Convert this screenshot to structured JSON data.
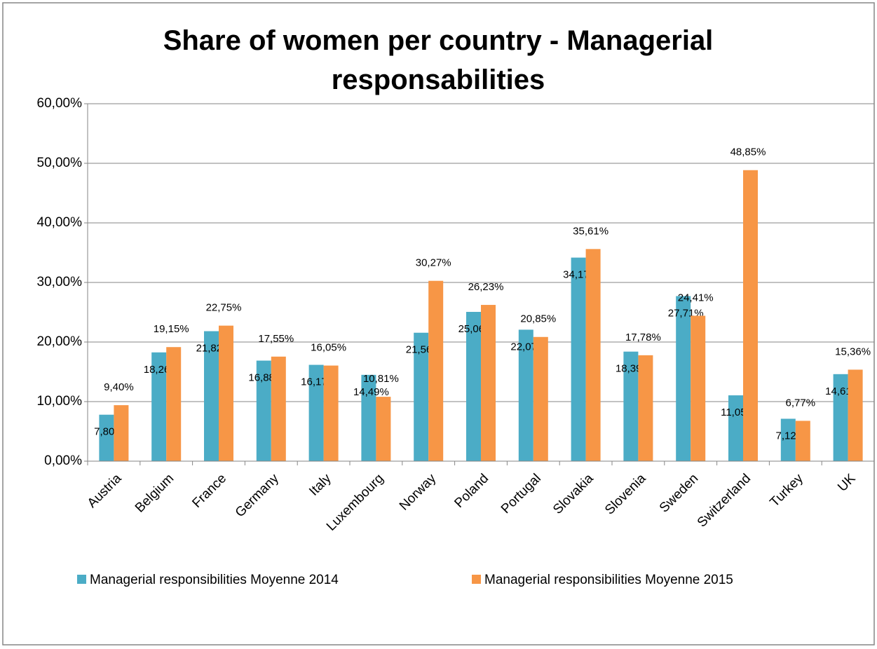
{
  "chart_data": {
    "type": "bar",
    "title": "Share of women per country - Managerial responsabilities",
    "categories": [
      "Austria",
      "Belgium",
      "France",
      "Germany",
      "Italy",
      "Luxembourg",
      "Norway",
      "Poland",
      "Portugal",
      "Slovakia",
      "Slovenia",
      "Sweden",
      "Switzerland",
      "Turkey",
      "UK"
    ],
    "series": [
      {
        "name": "Managerial responsibilities Moyenne 2014",
        "color": "#4bacc6",
        "values": [
          7.8,
          18.26,
          21.82,
          16.88,
          16.17,
          14.49,
          21.56,
          25.06,
          22.07,
          34.17,
          18.39,
          27.71,
          11.05,
          7.12,
          14.61
        ],
        "value_labels": [
          "7,80%",
          "18,26%",
          "21,82%",
          "16,88%",
          "16,17%",
          "14,49%",
          "21,56%",
          "25,06%",
          "22,07%",
          "34,17%",
          "18,39%",
          "27,71%",
          "11,05%",
          "7,12%",
          "14,61%"
        ]
      },
      {
        "name": "Managerial responsibilities Moyenne 2015",
        "color": "#f79646",
        "values": [
          9.4,
          19.15,
          22.75,
          17.55,
          16.05,
          10.81,
          30.27,
          26.23,
          20.85,
          35.61,
          17.78,
          24.41,
          48.85,
          6.77,
          15.36
        ],
        "value_labels": [
          "9,40%",
          "19,15%",
          "22,75%",
          "17,55%",
          "16,05%",
          "10,81%",
          "30,27%",
          "26,23%",
          "20,85%",
          "35,61%",
          "17,78%",
          "24,41%",
          "48,85%",
          "6,77%",
          "15,36%"
        ]
      }
    ],
    "ylim": [
      0,
      60
    ],
    "yticks": [
      {
        "value": 0,
        "label": "0,00%"
      },
      {
        "value": 10,
        "label": "10,00%"
      },
      {
        "value": 20,
        "label": "20,00%"
      },
      {
        "value": 30,
        "label": "30,00%"
      },
      {
        "value": 40,
        "label": "40,00%"
      },
      {
        "value": 50,
        "label": "50,00%"
      },
      {
        "value": 60,
        "label": "60,00%"
      }
    ],
    "grid": true,
    "legend": "bottom"
  }
}
